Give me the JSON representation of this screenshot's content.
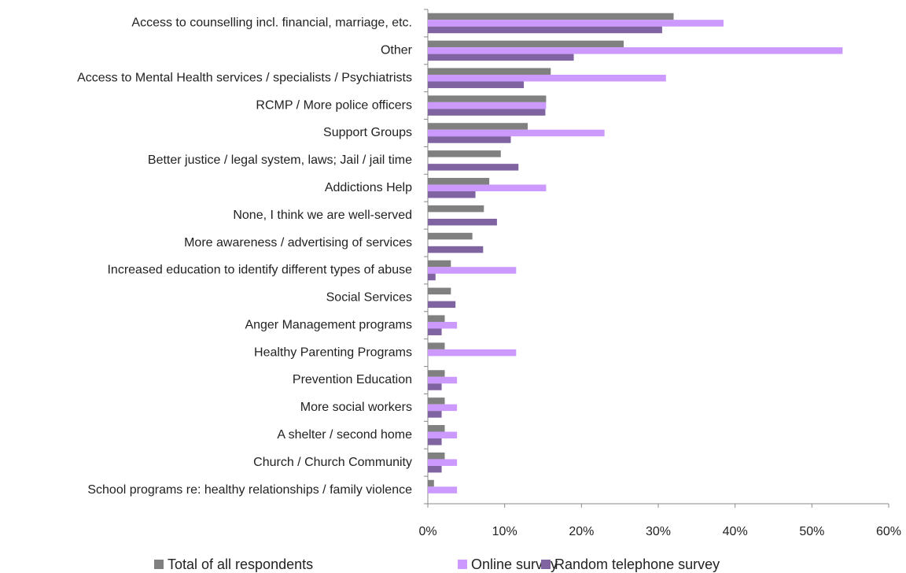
{
  "chart_data": {
    "type": "hbar",
    "categories": [
      "Access to counselling incl. financial, marriage, etc.",
      "Other",
      "Access to Mental Health services / specialists / Psychiatrists",
      "RCMP / More police officers",
      "Support Groups",
      "Better justice / legal system, laws; Jail / jail time",
      "Addictions Help",
      "None, I think we are well-served",
      "More awareness / advertising of services",
      "Increased education to identify different types of abuse",
      "Social Services",
      "Anger Management programs",
      "Healthy Parenting Programs",
      "Prevention Education",
      "More social workers",
      "A shelter / second home",
      "Church / Church Community",
      "School programs re: healthy relationships / family violence"
    ],
    "series": [
      {
        "name": "Total of all respondents",
        "color": "#808080",
        "values": [
          32,
          25.5,
          16,
          15.4,
          13,
          9.5,
          8,
          7.3,
          5.8,
          3,
          3,
          2.2,
          2.2,
          2.2,
          2.2,
          2.2,
          2.2,
          0.8
        ]
      },
      {
        "name": "Online survey",
        "color": "#cc99ff",
        "values": [
          38.5,
          54,
          31,
          15.4,
          23,
          0,
          15.4,
          0,
          0,
          11.5,
          0,
          3.8,
          11.5,
          3.8,
          3.8,
          3.8,
          3.8,
          3.8
        ]
      },
      {
        "name": "Random telephone survey",
        "color": "#8064a2",
        "values": [
          30.5,
          19,
          12.5,
          15.3,
          10.8,
          11.8,
          6.2,
          9,
          7.2,
          1,
          3.6,
          1.8,
          0,
          1.8,
          1.8,
          1.8,
          1.8,
          0
        ]
      }
    ],
    "xlim": [
      0,
      60
    ],
    "xticks": [
      {
        "value": 0,
        "label": "0%"
      },
      {
        "value": 10,
        "label": "10%"
      },
      {
        "value": 20,
        "label": "20%"
      },
      {
        "value": 30,
        "label": "30%"
      },
      {
        "value": 40,
        "label": "40%"
      },
      {
        "value": 50,
        "label": "50%"
      },
      {
        "value": 60,
        "label": "60%"
      }
    ],
    "legend": "bottom"
  }
}
